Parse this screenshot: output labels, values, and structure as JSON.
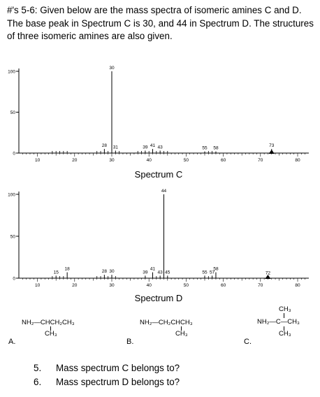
{
  "intro": "#'s 5-6: Given below are the mass spectra of isomeric amines C and D. The base peak in Spectrum C is 30, and 44 in Spectrum D. The structures of three isomeric amines are also given.",
  "spectra": [
    {
      "caption": "Spectrum C",
      "y_ticks": [
        100,
        50,
        0
      ],
      "x_ticks": [
        10,
        20,
        30,
        40,
        50,
        60,
        70,
        80
      ],
      "peaks": [
        {
          "mz": 30,
          "intensity": 100,
          "label": "30"
        },
        {
          "mz": 28,
          "intensity": 5,
          "label": "28"
        },
        {
          "mz": 31,
          "intensity": 3,
          "label": "31"
        },
        {
          "mz": 39,
          "intensity": 3,
          "label": "39"
        },
        {
          "mz": 41,
          "intensity": 5,
          "label": "41"
        },
        {
          "mz": 43,
          "intensity": 3,
          "label": "43"
        },
        {
          "mz": 55,
          "intensity": 2,
          "label": "55"
        },
        {
          "mz": 58,
          "intensity": 2,
          "label": "58"
        },
        {
          "mz": 73,
          "intensity": 5,
          "label": "73"
        }
      ],
      "minor": [
        14,
        15,
        16,
        17,
        18,
        26,
        27,
        29,
        32,
        37,
        38,
        40,
        42,
        44,
        45,
        56,
        57
      ]
    },
    {
      "caption": "Spectrum D",
      "y_ticks": [
        100,
        50,
        0
      ],
      "x_ticks": [
        10,
        20,
        30,
        40,
        50,
        60,
        70,
        80
      ],
      "peaks": [
        {
          "mz": 44,
          "intensity": 100,
          "label": "44"
        },
        {
          "mz": 15,
          "intensity": 3,
          "label": "15"
        },
        {
          "mz": 18,
          "intensity": 7,
          "label": "18"
        },
        {
          "mz": 28,
          "intensity": 4,
          "label": "28"
        },
        {
          "mz": 30,
          "intensity": 4,
          "label": "30"
        },
        {
          "mz": 39,
          "intensity": 3,
          "label": "39"
        },
        {
          "mz": 41,
          "intensity": 7,
          "label": "41"
        },
        {
          "mz": 43,
          "intensity": 3,
          "label": "43"
        },
        {
          "mz": 45,
          "intensity": 3,
          "label": "45"
        },
        {
          "mz": 55,
          "intensity": 3,
          "label": "55"
        },
        {
          "mz": 57,
          "intensity": 3,
          "label": "57"
        },
        {
          "mz": 58,
          "intensity": 7,
          "label": "58"
        },
        {
          "mz": 72,
          "intensity": 2,
          "label": "72"
        }
      ],
      "minor": [
        14,
        16,
        17,
        26,
        27,
        29,
        31,
        42,
        56
      ]
    }
  ],
  "structures": [
    {
      "letter": "A.",
      "main": "NH₂—CHCH₂CH₃",
      "sub": "CH₃"
    },
    {
      "letter": "B.",
      "main": "NH₂—CH₂CHCH₃",
      "sub": "CH₃"
    },
    {
      "letter": "C.",
      "top": "CH₃",
      "main": "NH₂—C—CH₃",
      "sub": "CH₃"
    }
  ],
  "questions": [
    {
      "num": "5.",
      "text": "Mass spectrum C belongs  to?"
    },
    {
      "num": "6.",
      "text": "Mass spectrum D belongs to?"
    }
  ]
}
